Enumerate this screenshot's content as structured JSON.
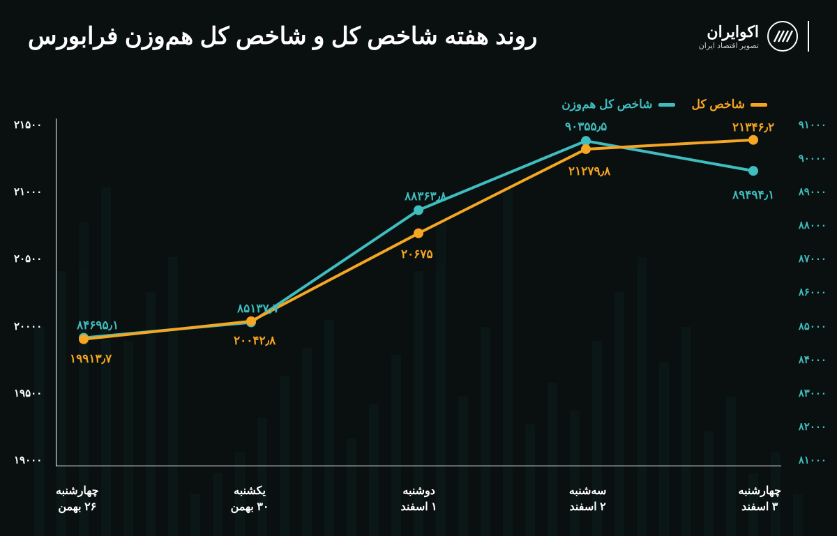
{
  "title": "روند هفته شاخص کل و شاخص کل هم‌وزن فرابورس",
  "logo": {
    "brand": "اکوایران",
    "tagline": "تصویر اقتصاد ایران"
  },
  "legend": {
    "series1": {
      "label": "شاخص کل",
      "color": "#f5a623"
    },
    "series2": {
      "label": "شاخص کل هم‌وزن",
      "color": "#3fbdbf"
    }
  },
  "chart": {
    "type": "line",
    "background_color": "#0a0f0f",
    "line_width": 4,
    "marker_radius": 7,
    "x_categories": [
      {
        "day": "چهارشنبه",
        "date": "۲۶ بهمن"
      },
      {
        "day": "یکشنبه",
        "date": "۳۰ بهمن"
      },
      {
        "day": "دوشنبه",
        "date": "۱ اسفند"
      },
      {
        "day": "سه‌شنبه",
        "date": "۲ اسفند"
      },
      {
        "day": "چهارشنبه",
        "date": "۳ اسفند"
      }
    ],
    "y_left": {
      "min": 19000,
      "max": 21500,
      "step": 500,
      "ticks": [
        "۲۱۵۰۰",
        "۲۱۰۰۰",
        "۲۰۵۰۰",
        "۲۰۰۰۰",
        "۱۹۵۰۰",
        "۱۹۰۰۰"
      ],
      "color": "#ffffff"
    },
    "y_right": {
      "min": 81000,
      "max": 91000,
      "step": 1000,
      "ticks": [
        "۹۱۰۰۰",
        "۹۰۰۰۰",
        "۸۹۰۰۰",
        "۸۸۰۰۰",
        "۸۷۰۰۰",
        "۸۶۰۰۰",
        "۸۵۰۰۰",
        "۸۴۰۰۰",
        "۸۳۰۰۰",
        "۸۲۰۰۰",
        "۸۱۰۰۰"
      ],
      "color": "#3fbdbf"
    },
    "series1": {
      "color": "#f5a623",
      "values": [
        19913.7,
        20042.8,
        20675,
        21279.8,
        21346.2
      ],
      "labels": [
        "۱۹۹۱۳٫۷",
        "۲۰۰۴۲٫۸",
        "۲۰۶۷۵",
        "۲۱۲۷۹٫۸",
        "۲۱۳۴۶٫۲"
      ]
    },
    "series2": {
      "color": "#3fbdbf",
      "values": [
        84695.1,
        85137.7,
        88363.8,
        90355.5,
        89494.1
      ],
      "labels": [
        "۸۴۶۹۵٫۱",
        "۸۵۱۳۷٫۷",
        "۸۸۳۶۳٫۸",
        "۹۰۳۵۵٫۵",
        "۸۹۴۹۴٫۱"
      ]
    }
  }
}
